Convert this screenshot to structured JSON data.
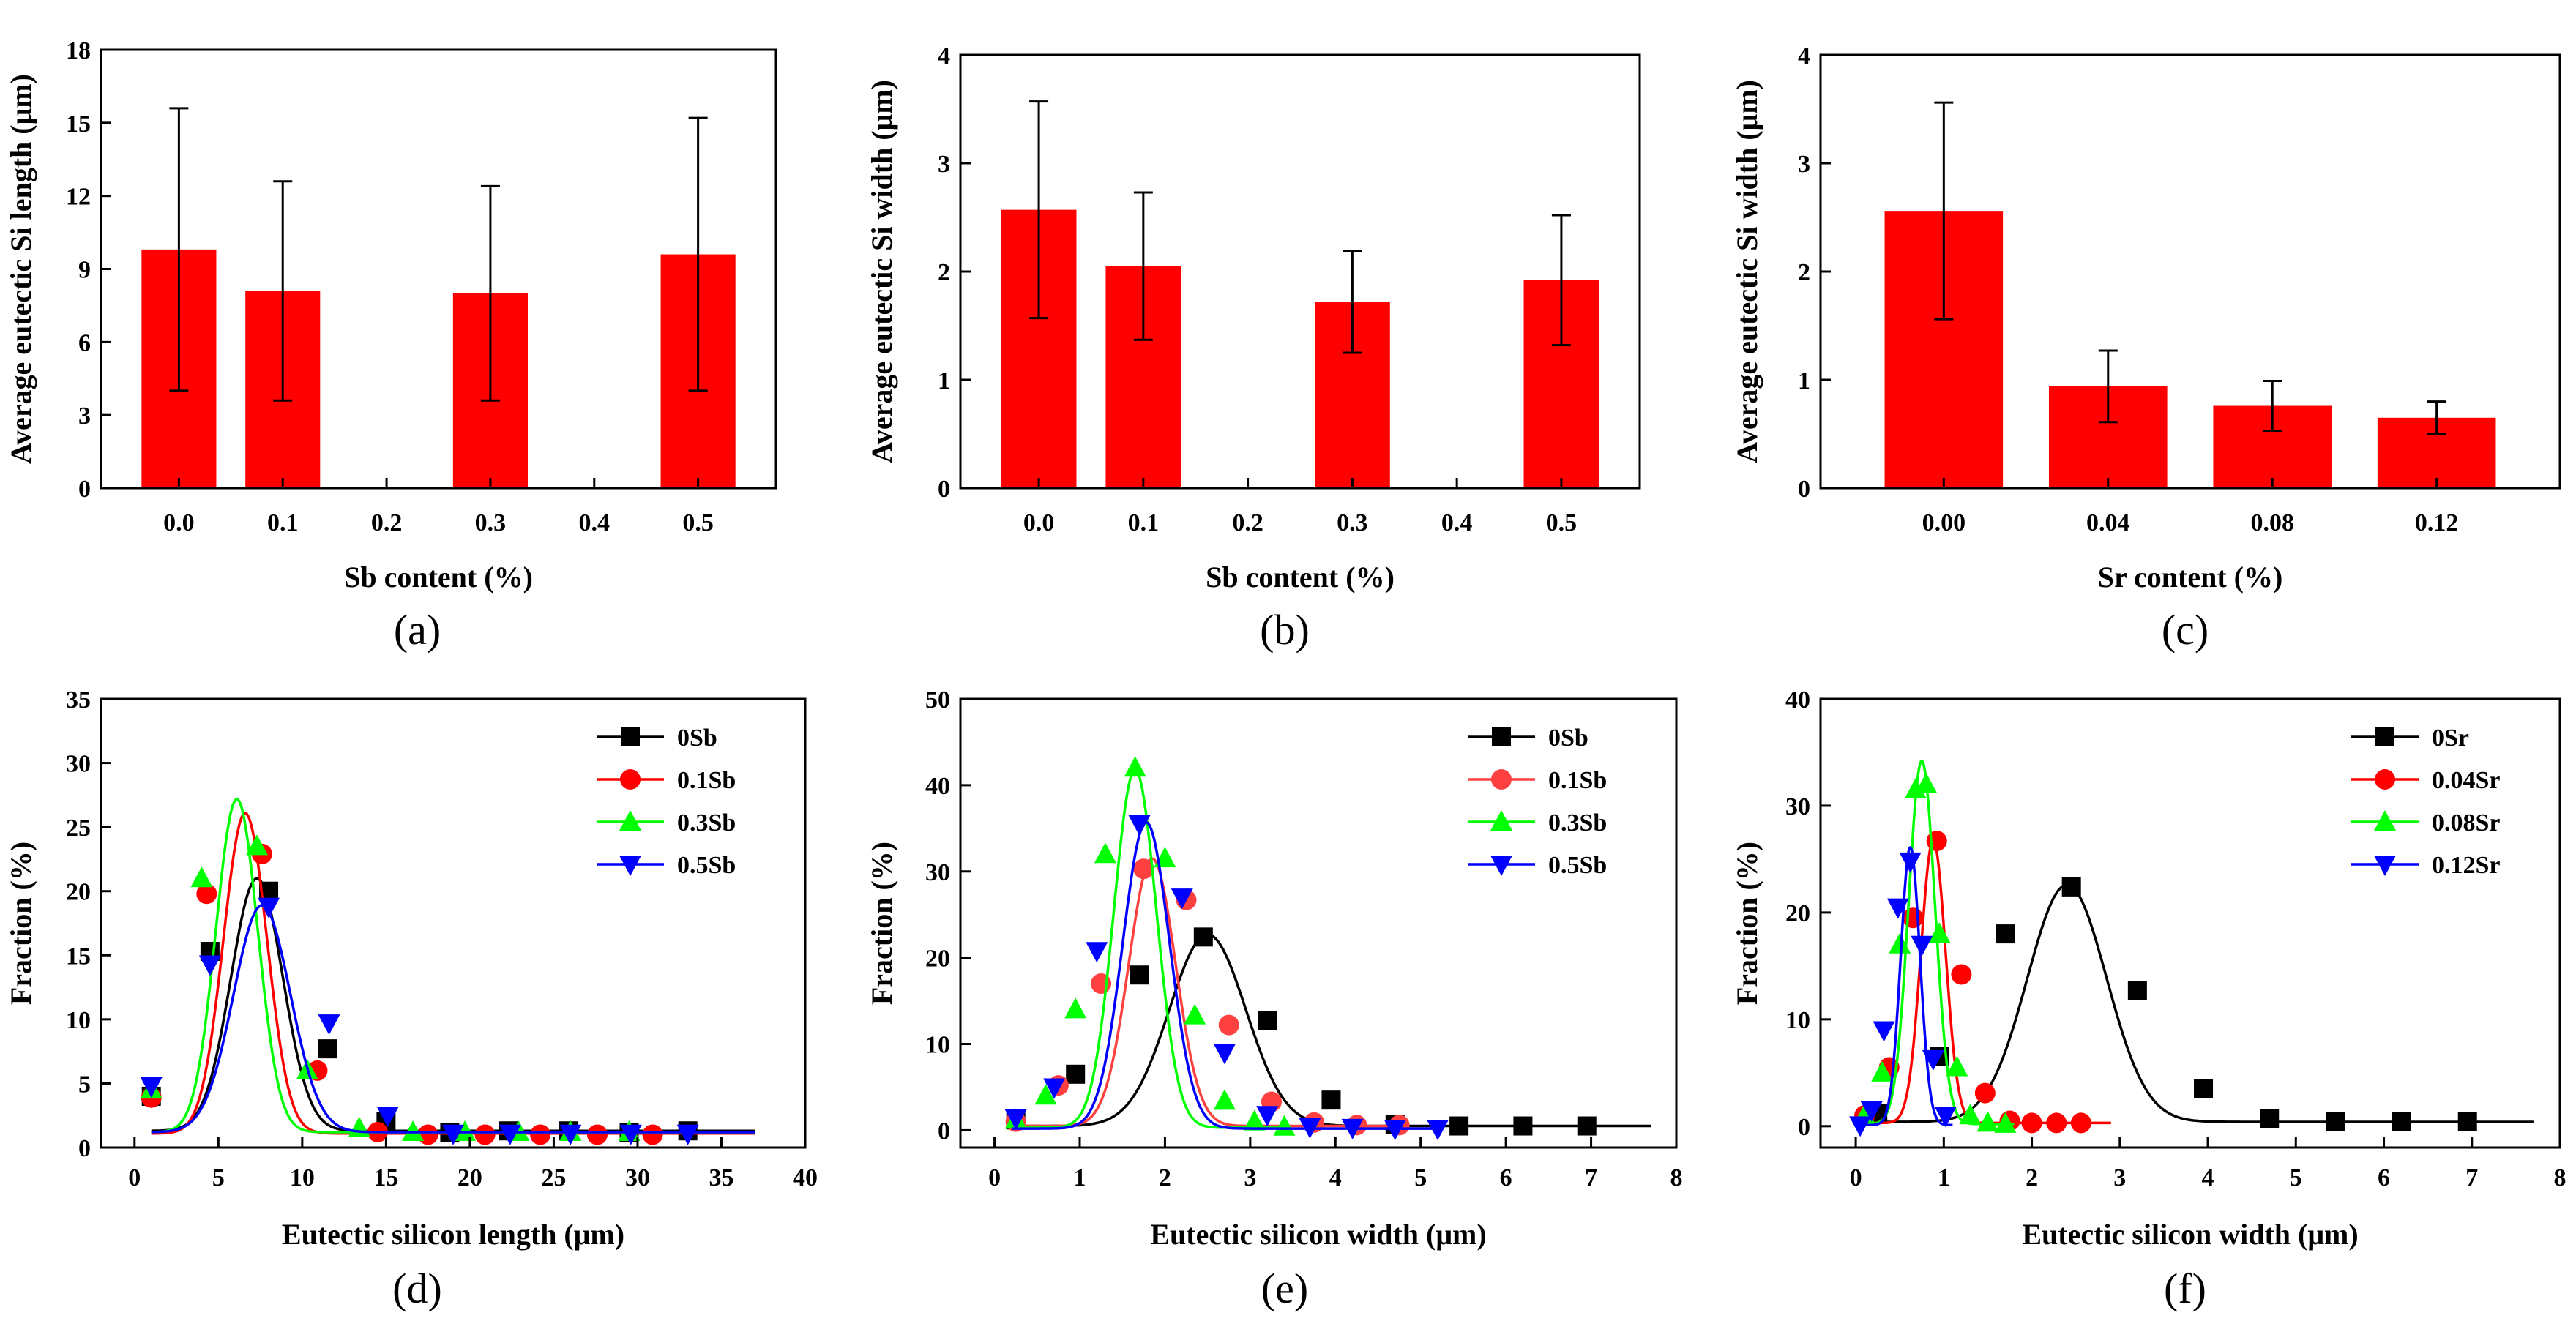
{
  "figure": {
    "bar_color": "#ff0000",
    "series_colors": {
      "black": "#000000",
      "red": "#ff0000",
      "green": "#00ff00",
      "blue": "#0000ff"
    }
  },
  "chart_data": [
    {
      "id": "a",
      "panel_label": "(a)",
      "type": "bar",
      "title": "",
      "xlabel": "Sb content (%)",
      "ylabel": "Average eutectic Si length (μm)",
      "categories": [
        "0.0",
        "0.1",
        "0.2",
        "0.3",
        "0.4",
        "0.5"
      ],
      "values": [
        9.8,
        8.1,
        null,
        8.0,
        null,
        9.6
      ],
      "errors": [
        5.8,
        4.5,
        null,
        4.4,
        null,
        5.6
      ],
      "ylim": [
        0,
        18
      ],
      "yticks": [
        0,
        3,
        6,
        9,
        12,
        15,
        18
      ],
      "ytick_labels": [
        "0",
        "3",
        "6",
        "9",
        "12",
        "15",
        "18"
      ]
    },
    {
      "id": "b",
      "panel_label": "(b)",
      "type": "bar",
      "title": "",
      "xlabel": "Sb content (%)",
      "ylabel": "Average eutectic Si width (μm)",
      "categories": [
        "0.0",
        "0.1",
        "0.2",
        "0.3",
        "0.4",
        "0.5"
      ],
      "values": [
        2.57,
        2.05,
        null,
        1.72,
        null,
        1.92
      ],
      "errors": [
        1.0,
        0.68,
        null,
        0.47,
        null,
        0.6
      ],
      "ylim": [
        0,
        4
      ],
      "yticks": [
        0,
        1,
        2,
        3,
        4
      ],
      "ytick_labels": [
        "0",
        "1",
        "2",
        "3",
        "4"
      ]
    },
    {
      "id": "c",
      "panel_label": "(c)",
      "type": "bar",
      "title": "",
      "xlabel": "Sr content (%)",
      "ylabel": "Average eutectic Si width (μm)",
      "categories": [
        "0.00",
        "0.04",
        "0.08",
        "0.12"
      ],
      "values": [
        2.56,
        0.94,
        0.76,
        0.65
      ],
      "errors": [
        1.0,
        0.33,
        0.23,
        0.15
      ],
      "ylim": [
        0,
        4
      ],
      "yticks": [
        0,
        1,
        2,
        3,
        4
      ],
      "ytick_labels": [
        "0",
        "1",
        "2",
        "3",
        "4"
      ]
    },
    {
      "id": "d",
      "panel_label": "(d)",
      "type": "line",
      "title": "",
      "xlabel": "Eutectic silicon length (μm)",
      "ylabel": "Fraction (%)",
      "xlim": [
        -2,
        40
      ],
      "ylim": [
        0,
        35
      ],
      "xticks": [
        0,
        5,
        10,
        15,
        20,
        25,
        30,
        35,
        40
      ],
      "xtick_labels": [
        "0",
        "5",
        "10",
        "15",
        "20",
        "25",
        "30",
        "35",
        "40"
      ],
      "yticks": [
        0,
        5,
        10,
        15,
        20,
        25,
        30,
        35
      ],
      "ytick_labels": [
        "0",
        "5",
        "10",
        "15",
        "20",
        "25",
        "30",
        "35"
      ],
      "legend_position": "top-right",
      "series": [
        {
          "name": "0Sb",
          "color": "#000000",
          "marker": "square",
          "fit": {
            "y0": 1.3,
            "A": 19.7,
            "xc": 7.3,
            "w": 3.1,
            "xmin": 1,
            "xmax": 37
          },
          "points": [
            [
              1.0,
              4.0
            ],
            [
              4.5,
              15.3
            ],
            [
              8.0,
              20.0
            ],
            [
              11.5,
              7.7
            ],
            [
              15.0,
              2.0
            ],
            [
              18.8,
              1.2
            ],
            [
              22.3,
              1.3
            ],
            [
              25.9,
              1.3
            ],
            [
              29.5,
              1.2
            ],
            [
              33.0,
              1.3
            ]
          ]
        },
        {
          "name": "0.1Sb",
          "color": "#ff0000",
          "marker": "circle",
          "fit": {
            "y0": 1.1,
            "A": 25.0,
            "xc": 6.6,
            "w": 2.6,
            "xmin": 1,
            "xmax": 37
          },
          "points": [
            [
              1.0,
              3.9
            ],
            [
              4.3,
              19.8
            ],
            [
              7.6,
              22.9
            ],
            [
              10.9,
              6.0
            ],
            [
              14.5,
              1.2
            ],
            [
              17.5,
              1.0
            ],
            [
              20.9,
              1.0
            ],
            [
              24.2,
              1.0
            ],
            [
              27.6,
              1.0
            ],
            [
              30.9,
              1.0
            ]
          ]
        },
        {
          "name": "0.3Sb",
          "color": "#00ff00",
          "marker": "triangle-up",
          "fit": {
            "y0": 1.2,
            "A": 26.0,
            "xc": 6.1,
            "w": 2.5,
            "xmin": 1,
            "xmax": 37
          },
          "points": [
            [
              1.0,
              4.5
            ],
            [
              4.0,
              21.0
            ],
            [
              7.3,
              23.5
            ],
            [
              10.3,
              6.0
            ],
            [
              13.4,
              1.5
            ],
            [
              16.6,
              1.2
            ],
            [
              19.7,
              1.2
            ],
            [
              22.9,
              1.2
            ],
            [
              26.0,
              1.2
            ],
            [
              29.5,
              1.2
            ]
          ]
        },
        {
          "name": "0.5Sb",
          "color": "#0000ff",
          "marker": "triangle-down",
          "fit": {
            "y0": 1.2,
            "A": 17.7,
            "xc": 7.6,
            "w": 3.4,
            "xmin": 1,
            "xmax": 37
          },
          "points": [
            [
              1.0,
              4.8
            ],
            [
              4.5,
              14.3
            ],
            [
              8.0,
              18.8
            ],
            [
              11.6,
              9.7
            ],
            [
              15.1,
              2.5
            ],
            [
              19.0,
              1.1
            ],
            [
              22.4,
              1.1
            ],
            [
              26.0,
              1.1
            ],
            [
              29.6,
              1.1
            ],
            [
              33.0,
              1.1
            ]
          ]
        }
      ]
    },
    {
      "id": "e",
      "panel_label": "(e)",
      "type": "line",
      "title": "",
      "xlabel": "Eutectic silicon width (μm)",
      "ylabel": "Fraction (%)",
      "xlim": [
        -0.4,
        8
      ],
      "ylim": [
        -2,
        50
      ],
      "xticks": [
        0,
        1,
        2,
        3,
        4,
        5,
        6,
        7,
        8
      ],
      "xtick_labels": [
        "0",
        "1",
        "2",
        "3",
        "4",
        "5",
        "6",
        "7",
        "8"
      ],
      "yticks": [
        0,
        10,
        20,
        30,
        40,
        50
      ],
      "ytick_labels": [
        "0",
        "10",
        "20",
        "30",
        "40",
        "50"
      ],
      "legend_position": "top-right",
      "series": [
        {
          "name": "0Sb",
          "color": "#000000",
          "marker": "square",
          "fit": {
            "y0": 0.5,
            "A": 22.2,
            "xc": 2.5,
            "w": 0.9,
            "xmin": 0.2,
            "xmax": 7.7
          },
          "points": [
            [
              0.25,
              1.2
            ],
            [
              0.95,
              6.5
            ],
            [
              1.7,
              18.0
            ],
            [
              2.45,
              22.4
            ],
            [
              3.2,
              12.7
            ],
            [
              3.95,
              3.5
            ],
            [
              4.7,
              0.7
            ],
            [
              5.45,
              0.5
            ],
            [
              6.2,
              0.5
            ],
            [
              6.95,
              0.5
            ]
          ]
        },
        {
          "name": "0.1Sb",
          "color": "#ff4040",
          "marker": "circle",
          "fit": {
            "y0": 0.5,
            "A": 31.0,
            "xc": 1.85,
            "w": 0.55,
            "xmin": 0.2,
            "xmax": 4.8
          },
          "points": [
            [
              0.25,
              1.0
            ],
            [
              0.75,
              5.2
            ],
            [
              1.25,
              17.0
            ],
            [
              1.75,
              30.3
            ],
            [
              2.25,
              26.7
            ],
            [
              2.75,
              12.2
            ],
            [
              3.25,
              3.3
            ],
            [
              3.75,
              0.9
            ],
            [
              4.25,
              0.6
            ],
            [
              4.75,
              0.6
            ]
          ]
        },
        {
          "name": "0.3Sb",
          "color": "#00ff00",
          "marker": "triangle-up",
          "fit": {
            "y0": 0.3,
            "A": 41.5,
            "xc": 1.65,
            "w": 0.5,
            "xmin": 0.2,
            "xmax": 3.4
          },
          "points": [
            [
              0.25,
              1.2
            ],
            [
              0.6,
              4.0
            ],
            [
              0.95,
              14.0
            ],
            [
              1.3,
              32.0
            ],
            [
              1.65,
              42.0
            ],
            [
              2.0,
              31.5
            ],
            [
              2.35,
              13.3
            ],
            [
              2.7,
              3.4
            ],
            [
              3.05,
              1.0
            ],
            [
              3.4,
              0.4
            ]
          ]
        },
        {
          "name": "0.5Sb",
          "color": "#0000ff",
          "marker": "triangle-down",
          "fit": {
            "y0": 0.2,
            "A": 35.5,
            "xc": 1.78,
            "w": 0.55,
            "xmin": 0.2,
            "xmax": 5.2
          },
          "points": [
            [
              0.25,
              1.4
            ],
            [
              0.7,
              5.0
            ],
            [
              1.2,
              20.8
            ],
            [
              1.7,
              35.5
            ],
            [
              2.2,
              27.0
            ],
            [
              2.7,
              9.0
            ],
            [
              3.2,
              1.8
            ],
            [
              3.7,
              0.4
            ],
            [
              4.2,
              0.3
            ],
            [
              4.7,
              0.2
            ],
            [
              5.2,
              0.2
            ]
          ]
        }
      ]
    },
    {
      "id": "f",
      "panel_label": "(f)",
      "type": "line",
      "title": "",
      "xlabel": "Eutectic silicon width (μm)",
      "ylabel": "Fraction (%)",
      "xlim": [
        -0.4,
        8
      ],
      "ylim": [
        -2,
        40
      ],
      "xticks": [
        0,
        1,
        2,
        3,
        4,
        5,
        6,
        7,
        8
      ],
      "xtick_labels": [
        "0",
        "1",
        "2",
        "3",
        "4",
        "5",
        "6",
        "7",
        "8"
      ],
      "yticks": [
        0,
        10,
        20,
        30,
        40
      ],
      "ytick_labels": [
        "0",
        "10",
        "20",
        "30",
        "40"
      ],
      "legend_position": "top-right",
      "series": [
        {
          "name": "0Sr",
          "color": "#000000",
          "marker": "square",
          "fit": {
            "y0": 0.4,
            "A": 22.2,
            "xc": 2.4,
            "w": 0.9,
            "xmin": 0.2,
            "xmax": 7.7
          },
          "points": [
            [
              0.25,
              1.2
            ],
            [
              0.95,
              6.5
            ],
            [
              1.7,
              18.0
            ],
            [
              2.45,
              22.4
            ],
            [
              3.2,
              12.7
            ],
            [
              3.95,
              3.5
            ],
            [
              4.7,
              0.7
            ],
            [
              5.45,
              0.4
            ],
            [
              6.2,
              0.4
            ],
            [
              6.95,
              0.4
            ]
          ]
        },
        {
          "name": "0.04Sr",
          "color": "#ff0000",
          "marker": "circle",
          "fit": {
            "y0": 0.3,
            "A": 26.5,
            "xc": 0.88,
            "w": 0.28,
            "xmin": 0.1,
            "xmax": 2.9
          },
          "points": [
            [
              0.1,
              1.0
            ],
            [
              0.38,
              5.5
            ],
            [
              0.65,
              19.5
            ],
            [
              0.92,
              26.7
            ],
            [
              1.2,
              14.2
            ],
            [
              1.47,
              3.1
            ],
            [
              1.75,
              0.5
            ],
            [
              2.0,
              0.3
            ],
            [
              2.28,
              0.3
            ],
            [
              2.56,
              0.3
            ]
          ]
        },
        {
          "name": "0.08Sr",
          "color": "#00ff00",
          "marker": "triangle-up",
          "fit": {
            "y0": 0.2,
            "A": 34.0,
            "xc": 0.75,
            "w": 0.3,
            "xmin": 0.1,
            "xmax": 1.8
          },
          "points": [
            [
              0.1,
              1.0
            ],
            [
              0.3,
              5.0
            ],
            [
              0.5,
              17.0
            ],
            [
              0.68,
              31.5
            ],
            [
              0.8,
              32.0
            ],
            [
              0.95,
              18.0
            ],
            [
              1.15,
              5.5
            ],
            [
              1.3,
              1.0
            ],
            [
              1.5,
              0.3
            ],
            [
              1.7,
              0.2
            ]
          ]
        },
        {
          "name": "0.12Sr",
          "color": "#0000ff",
          "marker": "triangle-down",
          "fit": {
            "y0": 0.1,
            "A": 26.0,
            "xc": 0.62,
            "w": 0.22,
            "xmin": 0.05,
            "xmax": 1.1
          },
          "points": [
            [
              0.05,
              0.1
            ],
            [
              0.18,
              1.5
            ],
            [
              0.32,
              9.0
            ],
            [
              0.48,
              20.5
            ],
            [
              0.62,
              24.8
            ],
            [
              0.75,
              17.0
            ],
            [
              0.88,
              6.3
            ],
            [
              1.02,
              1.0
            ]
          ]
        }
      ]
    }
  ]
}
